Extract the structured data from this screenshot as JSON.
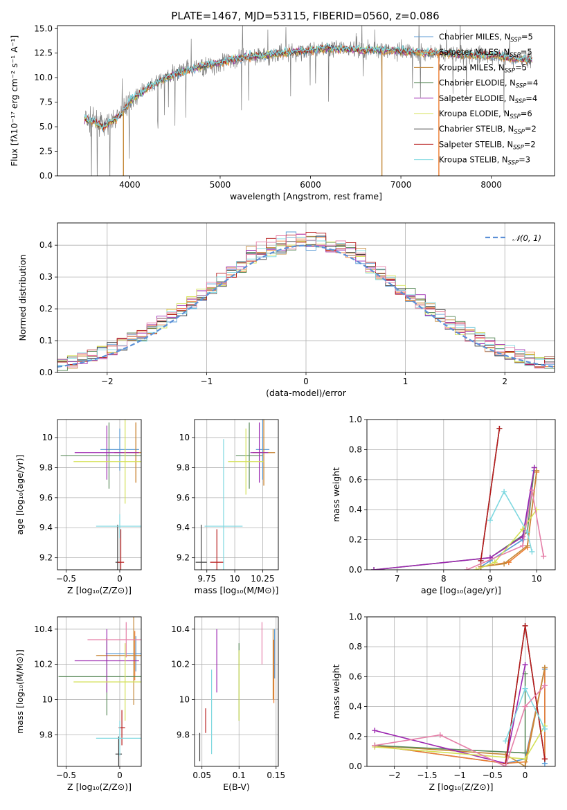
{
  "figure": {
    "title": "PLATE=1467, MJD=53115, FIBERID=0560, z=0.086"
  },
  "models": [
    {
      "name": "Chabrier MILES, N",
      "sub": "SSP",
      "tail": "=5",
      "color": "#5b9bd5"
    },
    {
      "name": "Salpeter MILES, N",
      "sub": "SSP",
      "tail": "=5",
      "color": "#ed7d31"
    },
    {
      "name": "Kroupa MILES, N",
      "sub": "SSP",
      "tail": "=5",
      "color": "#c58a3b"
    },
    {
      "name": "Chabrier ELODIE, N",
      "sub": "SSP",
      "tail": "=4",
      "color": "#5a8a5a"
    },
    {
      "name": "Salpeter ELODIE, N",
      "sub": "SSP",
      "tail": "=4",
      "color": "#9c27b0"
    },
    {
      "name": "Kroupa ELODIE, N",
      "sub": "SSP",
      "tail": "=6",
      "color": "#d4e157"
    },
    {
      "name": "Chabrier STELIB, N",
      "sub": "SSP",
      "tail": "=2",
      "color": "#444444"
    },
    {
      "name": "Salpeter STELIB, N",
      "sub": "SSP",
      "tail": "=2",
      "color": "#b71c1c"
    },
    {
      "name": "Kroupa STELIB, N",
      "sub": "SSP",
      "tail": "=3",
      "color": "#7fd8e0"
    }
  ],
  "chart_data": [
    {
      "id": "spectrum",
      "type": "line",
      "xlabel": "wavelength [Angstrom, rest frame]",
      "ylabel": "Flux [fλ10⁻¹⁷ erg cm⁻² s⁻¹ A⁻¹]",
      "xlim": [
        3200,
        8700
      ],
      "ylim": [
        0,
        15.3
      ],
      "xticks": [
        4000,
        5000,
        6000,
        7000,
        8000
      ],
      "yticks": [
        0.0,
        2.5,
        5.0,
        7.5,
        10.0,
        12.5,
        15.0
      ],
      "data_color": "#808080",
      "continuum": {
        "x": [
          3500,
          3600,
          3700,
          3800,
          3900,
          4000,
          4200,
          4400,
          4600,
          4800,
          5000,
          5200,
          5400,
          5600,
          5800,
          6000,
          6200,
          6400,
          6600,
          6800,
          7000,
          7200,
          7400,
          7600,
          7800,
          8000,
          8200,
          8400
        ],
        "y": [
          5.8,
          5.5,
          5.0,
          5.5,
          6.2,
          7.6,
          9.0,
          10.0,
          10.6,
          11.2,
          11.5,
          12.0,
          12.2,
          12.4,
          12.6,
          12.8,
          13.0,
          12.9,
          12.8,
          12.8,
          12.7,
          12.6,
          12.5,
          12.4,
          12.3,
          12.3,
          12.0,
          11.8
        ]
      },
      "spikes": [
        {
          "x": 3930,
          "y": 0
        },
        {
          "x": 6790,
          "y": 0
        },
        {
          "x": 7420,
          "y": 0
        }
      ]
    },
    {
      "id": "residuals",
      "type": "bar",
      "xlabel": "(data-model)/error",
      "ylabel": "Normed distribution",
      "xlim": [
        -2.5,
        2.5
      ],
      "ylim": [
        0,
        0.47
      ],
      "xticks": [
        -2,
        -1,
        0,
        1,
        2
      ],
      "yticks": [
        0.0,
        0.1,
        0.2,
        0.3,
        0.4
      ],
      "legend": "𝒩(0, 1)",
      "legend_color": "#5b8fd6",
      "bin_width": 0.1
    },
    {
      "id": "age_vs_Z",
      "type": "scatter",
      "xlabel": "Z [log₁₀(Z/Z⊙)]",
      "ylabel": "age  [log₁₀(age/yr)]",
      "xlim": [
        -0.58,
        0.2
      ],
      "ylim": [
        9.12,
        10.12
      ],
      "xticks": [
        -0.5,
        0.0
      ],
      "yticks": [
        9.2,
        9.4,
        9.6,
        9.8,
        10.0
      ],
      "points": [
        {
          "x": 0.0,
          "y": 9.92,
          "ex": 0.18,
          "ey": 0.14
        },
        {
          "x": 0.15,
          "y": 9.9,
          "ex": 0.2,
          "ey": 0.2
        },
        {
          "x": 0.15,
          "y": 9.9,
          "ex": 0.2,
          "ey": 0.2
        },
        {
          "x": -0.1,
          "y": 9.88,
          "ex": 0.45,
          "ey": 0.22
        },
        {
          "x": -0.12,
          "y": 9.9,
          "ex": 0.3,
          "ey": 0.18
        },
        {
          "x": 0.05,
          "y": 9.84,
          "ex": 0.48,
          "ey": 0.28
        },
        {
          "x": -0.02,
          "y": 9.17,
          "ex": 0.02,
          "ey": 0.25
        },
        {
          "x": 0.01,
          "y": 9.17,
          "ex": 0.03,
          "ey": 0.22
        },
        {
          "x": 0.0,
          "y": 9.41,
          "ex": 0.22,
          "ey": 0.08
        }
      ]
    },
    {
      "id": "age_vs_mass",
      "type": "scatter",
      "xlabel": "mass [log₁₀(M/M⊙)]",
      "ylabel": "",
      "xlim": [
        9.64,
        10.39
      ],
      "ylim": [
        9.12,
        10.12
      ],
      "xticks": [
        9.75,
        10.0,
        10.25
      ],
      "yticks": [
        9.2,
        9.4,
        9.6,
        9.8,
        10.0
      ],
      "points": [
        {
          "x": 10.25,
          "y": 9.92,
          "ex": 0.06,
          "ey": 0.2
        },
        {
          "x": 10.26,
          "y": 9.9,
          "ex": 0.1,
          "ey": 0.22
        },
        {
          "x": 10.26,
          "y": 9.9,
          "ex": 0.1,
          "ey": 0.22
        },
        {
          "x": 10.13,
          "y": 9.88,
          "ex": 0.12,
          "ey": 0.22
        },
        {
          "x": 10.22,
          "y": 9.9,
          "ex": 0.08,
          "ey": 0.2
        },
        {
          "x": 10.1,
          "y": 9.84,
          "ex": 0.16,
          "ey": 0.22
        },
        {
          "x": 9.7,
          "y": 9.17,
          "ex": 0.05,
          "ey": 0.25
        },
        {
          "x": 9.84,
          "y": 9.17,
          "ex": 0.06,
          "ey": 0.22
        },
        {
          "x": 9.9,
          "y": 9.41,
          "ex": 0.17,
          "ey": 0.58
        }
      ]
    },
    {
      "id": "massweight_vs_age",
      "type": "line",
      "xlabel": "age  [log₁₀(age/yr)]",
      "ylabel": "mass weight",
      "xlim": [
        6.35,
        10.4
      ],
      "ylim": [
        0,
        1.0
      ],
      "xticks": [
        7,
        8,
        9,
        10
      ],
      "yticks": [
        0.0,
        0.2,
        0.4,
        0.6,
        0.8,
        1.0
      ],
      "series": [
        {
          "x": [
            8.8,
            9.0,
            9.7,
            9.95
          ],
          "y": [
            0.02,
            0.06,
            0.2,
            0.66
          ]
        },
        {
          "x": [
            8.8,
            9.4,
            9.8,
            10.0
          ],
          "y": [
            0.02,
            0.05,
            0.15,
            0.65
          ]
        },
        {
          "x": [
            8.8,
            9.3,
            9.8,
            10.0
          ],
          "y": [
            0.02,
            0.04,
            0.16,
            0.66
          ]
        },
        {
          "x": [
            6.5,
            9.0,
            9.8,
            9.95
          ],
          "y": [
            0.0,
            0.08,
            0.25,
            0.68
          ]
        },
        {
          "x": [
            6.5,
            9.0,
            9.7,
            9.95
          ],
          "y": [
            0.0,
            0.08,
            0.22,
            0.68
          ]
        },
        {
          "x": [
            8.7,
            9.1,
            9.7,
            10.0
          ],
          "y": [
            0.0,
            0.05,
            0.27,
            0.4
          ]
        },
        {
          "x": [
            8.8,
            9.2
          ],
          "y": [
            0.06,
            0.94
          ]
        },
        {
          "x": [
            8.8,
            9.2
          ],
          "y": [
            0.06,
            0.94
          ]
        },
        {
          "x": [
            9.0,
            9.3,
            9.8,
            9.9
          ],
          "y": [
            0.33,
            0.52,
            0.25,
            0.12
          ]
        },
        {
          "x": [
            8.5,
            9.7,
            9.9,
            10.15
          ],
          "y": [
            0.0,
            0.16,
            0.53,
            0.09
          ]
        }
      ]
    },
    {
      "id": "mass_vs_Z",
      "type": "scatter",
      "xlabel": "Z [log₁₀(Z/Z⊙)]",
      "ylabel": "mass [log₁₀(M/M⊙)]",
      "xlim": [
        -0.58,
        0.2
      ],
      "ylim": [
        9.62,
        10.47
      ],
      "xticks": [
        -0.5,
        0.0
      ],
      "yticks": [
        9.8,
        10.0,
        10.2,
        10.4
      ],
      "points": [
        {
          "x": 0.15,
          "y": 10.26,
          "ex": 0.28,
          "ey": 0.1
        },
        {
          "x": 0.14,
          "y": 10.25,
          "ex": 0.35,
          "ey": 0.14
        },
        {
          "x": 0.13,
          "y": 10.25,
          "ex": 0.35,
          "ey": 0.28
        },
        {
          "x": -0.12,
          "y": 10.13,
          "ex": 0.45,
          "ey": 0.22
        },
        {
          "x": -0.12,
          "y": 10.22,
          "ex": 0.3,
          "ey": 0.18
        },
        {
          "x": 0.05,
          "y": 10.1,
          "ex": 0.48,
          "ey": 0.22
        },
        {
          "x": -0.01,
          "y": 9.69,
          "ex": 0.03,
          "ey": 0.1
        },
        {
          "x": 0.02,
          "y": 9.84,
          "ex": 0.03,
          "ey": 0.1
        },
        {
          "x": 0.0,
          "y": 9.78,
          "ex": 0.22,
          "ey": 0.1
        },
        {
          "x": 0.06,
          "y": 10.34,
          "ex": 0.36,
          "ey": 0.1
        }
      ]
    },
    {
      "id": "mass_vs_ebv",
      "type": "scatter",
      "xlabel": "E(B-V)",
      "ylabel": "",
      "xlim": [
        0.04,
        0.153
      ],
      "ylim": [
        9.62,
        10.47
      ],
      "xticks": [
        0.05,
        0.1,
        0.15
      ],
      "yticks": [
        9.8,
        10.0,
        10.2,
        10.4
      ],
      "points": [
        {
          "x": 0.148,
          "y": 10.26,
          "ex": 0.0,
          "ey": 0.14
        },
        {
          "x": 0.147,
          "y": 10.16,
          "ex": 0.0,
          "ey": 0.18
        },
        {
          "x": 0.146,
          "y": 10.2,
          "ex": 0.0,
          "ey": 0.2
        },
        {
          "x": 0.1,
          "y": 10.1,
          "ex": 0.0,
          "ey": 0.22
        },
        {
          "x": 0.07,
          "y": 10.22,
          "ex": 0.0,
          "ey": 0.18
        },
        {
          "x": 0.1,
          "y": 10.08,
          "ex": 0.0,
          "ey": 0.2
        },
        {
          "x": 0.047,
          "y": 9.73,
          "ex": 0.0,
          "ey": 0.08
        },
        {
          "x": 0.055,
          "y": 9.88,
          "ex": 0.0,
          "ey": 0.07
        },
        {
          "x": 0.063,
          "y": 9.93,
          "ex": 0.0,
          "ey": 0.24
        },
        {
          "x": 0.131,
          "y": 10.32,
          "ex": 0.0,
          "ey": 0.12
        }
      ]
    },
    {
      "id": "massweight_vs_Z",
      "type": "line",
      "xlabel": "Z [log₁₀(Z/Z⊙)]",
      "ylabel": "mass weight",
      "xlim": [
        -2.42,
        0.46
      ],
      "ylim": [
        0,
        1.0
      ],
      "xticks": [
        -2.0,
        -1.5,
        -1.0,
        -0.5,
        0.0
      ],
      "yticks": [
        0.0,
        0.2,
        0.4,
        0.6,
        0.8,
        1.0
      ],
      "series": [
        {
          "x": [
            -2.3,
            -0.3,
            0.0,
            0.3,
            0.3
          ],
          "y": [
            0.14,
            0.02,
            0.05,
            0.65,
            0.02
          ]
        },
        {
          "x": [
            -2.3,
            -0.3,
            0.0,
            0.3,
            0.3
          ],
          "y": [
            0.14,
            0.02,
            0.03,
            0.66,
            0.05
          ]
        },
        {
          "x": [
            -2.3,
            -0.3,
            0.0,
            0.3
          ],
          "y": [
            0.14,
            0.08,
            0.0,
            0.66
          ]
        },
        {
          "x": [
            -2.3,
            0.0,
            0.0
          ],
          "y": [
            0.14,
            0.09,
            0.62
          ]
        },
        {
          "x": [
            -2.3,
            -0.3,
            0.0
          ],
          "y": [
            0.24,
            0.02,
            0.68
          ]
        },
        {
          "x": [
            -2.3,
            0.0,
            0.3
          ],
          "y": [
            0.13,
            0.05,
            0.27
          ]
        },
        {
          "x": [
            -0.3,
            0.0,
            0.3
          ],
          "y": [
            0.02,
            0.94,
            0.05
          ]
        },
        {
          "x": [
            -0.3,
            0.0,
            0.3
          ],
          "y": [
            0.02,
            0.94,
            0.05
          ]
        },
        {
          "x": [
            -0.3,
            0.0,
            0.3
          ],
          "y": [
            0.17,
            0.52,
            0.25
          ]
        },
        {
          "x": [
            -2.3,
            -1.3,
            -0.3,
            0.0,
            0.3
          ],
          "y": [
            0.14,
            0.21,
            0.0,
            0.4,
            0.54
          ]
        }
      ]
    }
  ]
}
